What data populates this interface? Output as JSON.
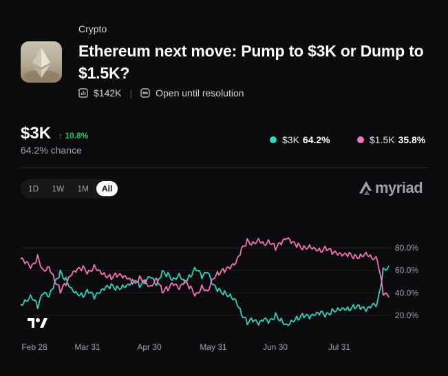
{
  "market": {
    "category": "Crypto",
    "title": "Ethereum next move: Pump to $3K or Dump to $1.5K?",
    "volume": "$142K",
    "status": "Open until resolution"
  },
  "headline": {
    "price": "$3K",
    "change": "↑ 10.8%",
    "chance": "64.2% chance"
  },
  "legend": [
    {
      "label": "$3K",
      "value": "64.2%",
      "color": "#2dd4bf"
    },
    {
      "label": "$1.5K",
      "value": "35.8%",
      "color": "#f472b6"
    }
  ],
  "ranges": [
    "1D",
    "1W",
    "1M",
    "All"
  ],
  "active_range": "All",
  "brand": "myriad",
  "chart_data": {
    "type": "line",
    "x_tick_labels": [
      "Feb 28",
      "Mar 31",
      "Apr 30",
      "May 31",
      "Jun 30",
      "Jul 31"
    ],
    "y_tick_labels": [
      "80.0%",
      "60.0%",
      "40.0%",
      "20.0%"
    ],
    "ylim": [
      0,
      100
    ],
    "series": [
      {
        "name": "$3K",
        "color": "#2dd4bf",
        "values": [
          30,
          34,
          37,
          28,
          40,
          36,
          48,
          58,
          52,
          44,
          40,
          38,
          42,
          36,
          40,
          44,
          46,
          44,
          46,
          48,
          52,
          47,
          50,
          54,
          46,
          58,
          56,
          52,
          57,
          50,
          56,
          62,
          54,
          58,
          46,
          42,
          40,
          38,
          34,
          22,
          14,
          16,
          12,
          16,
          14,
          20,
          16,
          12,
          16,
          18,
          20,
          18,
          20,
          22,
          20,
          24,
          26,
          27,
          26,
          28,
          27,
          24,
          28,
          30,
          60,
          64
        ]
      },
      {
        "name": "$1.5K",
        "color": "#f472b6",
        "values": [
          70,
          66,
          63,
          72,
          60,
          64,
          52,
          42,
          48,
          56,
          60,
          62,
          58,
          64,
          60,
          56,
          54,
          56,
          54,
          52,
          48,
          53,
          50,
          46,
          54,
          42,
          44,
          48,
          43,
          50,
          44,
          38,
          46,
          42,
          54,
          58,
          60,
          62,
          66,
          78,
          86,
          84,
          88,
          84,
          86,
          80,
          84,
          88,
          84,
          82,
          80,
          82,
          80,
          78,
          80,
          76,
          74,
          73,
          74,
          72,
          73,
          76,
          72,
          70,
          40,
          36
        ]
      }
    ]
  }
}
